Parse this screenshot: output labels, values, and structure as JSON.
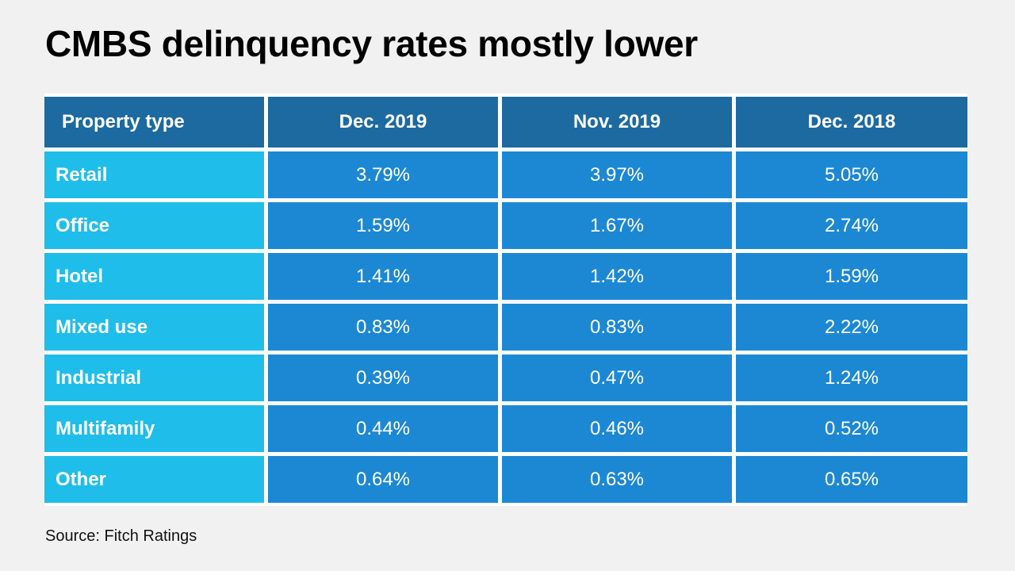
{
  "title": "CMBS delinquency rates mostly lower",
  "source": "Source: Fitch Ratings",
  "colors": {
    "header": "#1c6aa0",
    "label_cell": "#1fbdea",
    "value_cell": "#1c88d4",
    "background": "#f0f1f0"
  },
  "chart_data": {
    "type": "table",
    "title": "CMBS delinquency rates mostly lower",
    "columns": [
      "Property type",
      "Dec. 2019",
      "Nov. 2019",
      "Dec. 2018"
    ],
    "rows": [
      [
        "Retail",
        "3.79%",
        "3.97%",
        "5.05%"
      ],
      [
        "Office",
        "1.59%",
        "1.67%",
        "2.74%"
      ],
      [
        "Hotel",
        "1.41%",
        "1.42%",
        "1.59%"
      ],
      [
        "Mixed use",
        "0.83%",
        "0.83%",
        "2.22%"
      ],
      [
        "Industrial",
        "0.39%",
        "0.47%",
        "1.24%"
      ],
      [
        "Multifamily",
        "0.44%",
        "0.46%",
        "0.52%"
      ],
      [
        "Other",
        "0.64%",
        "0.63%",
        "0.65%"
      ]
    ],
    "source": "Fitch Ratings"
  }
}
